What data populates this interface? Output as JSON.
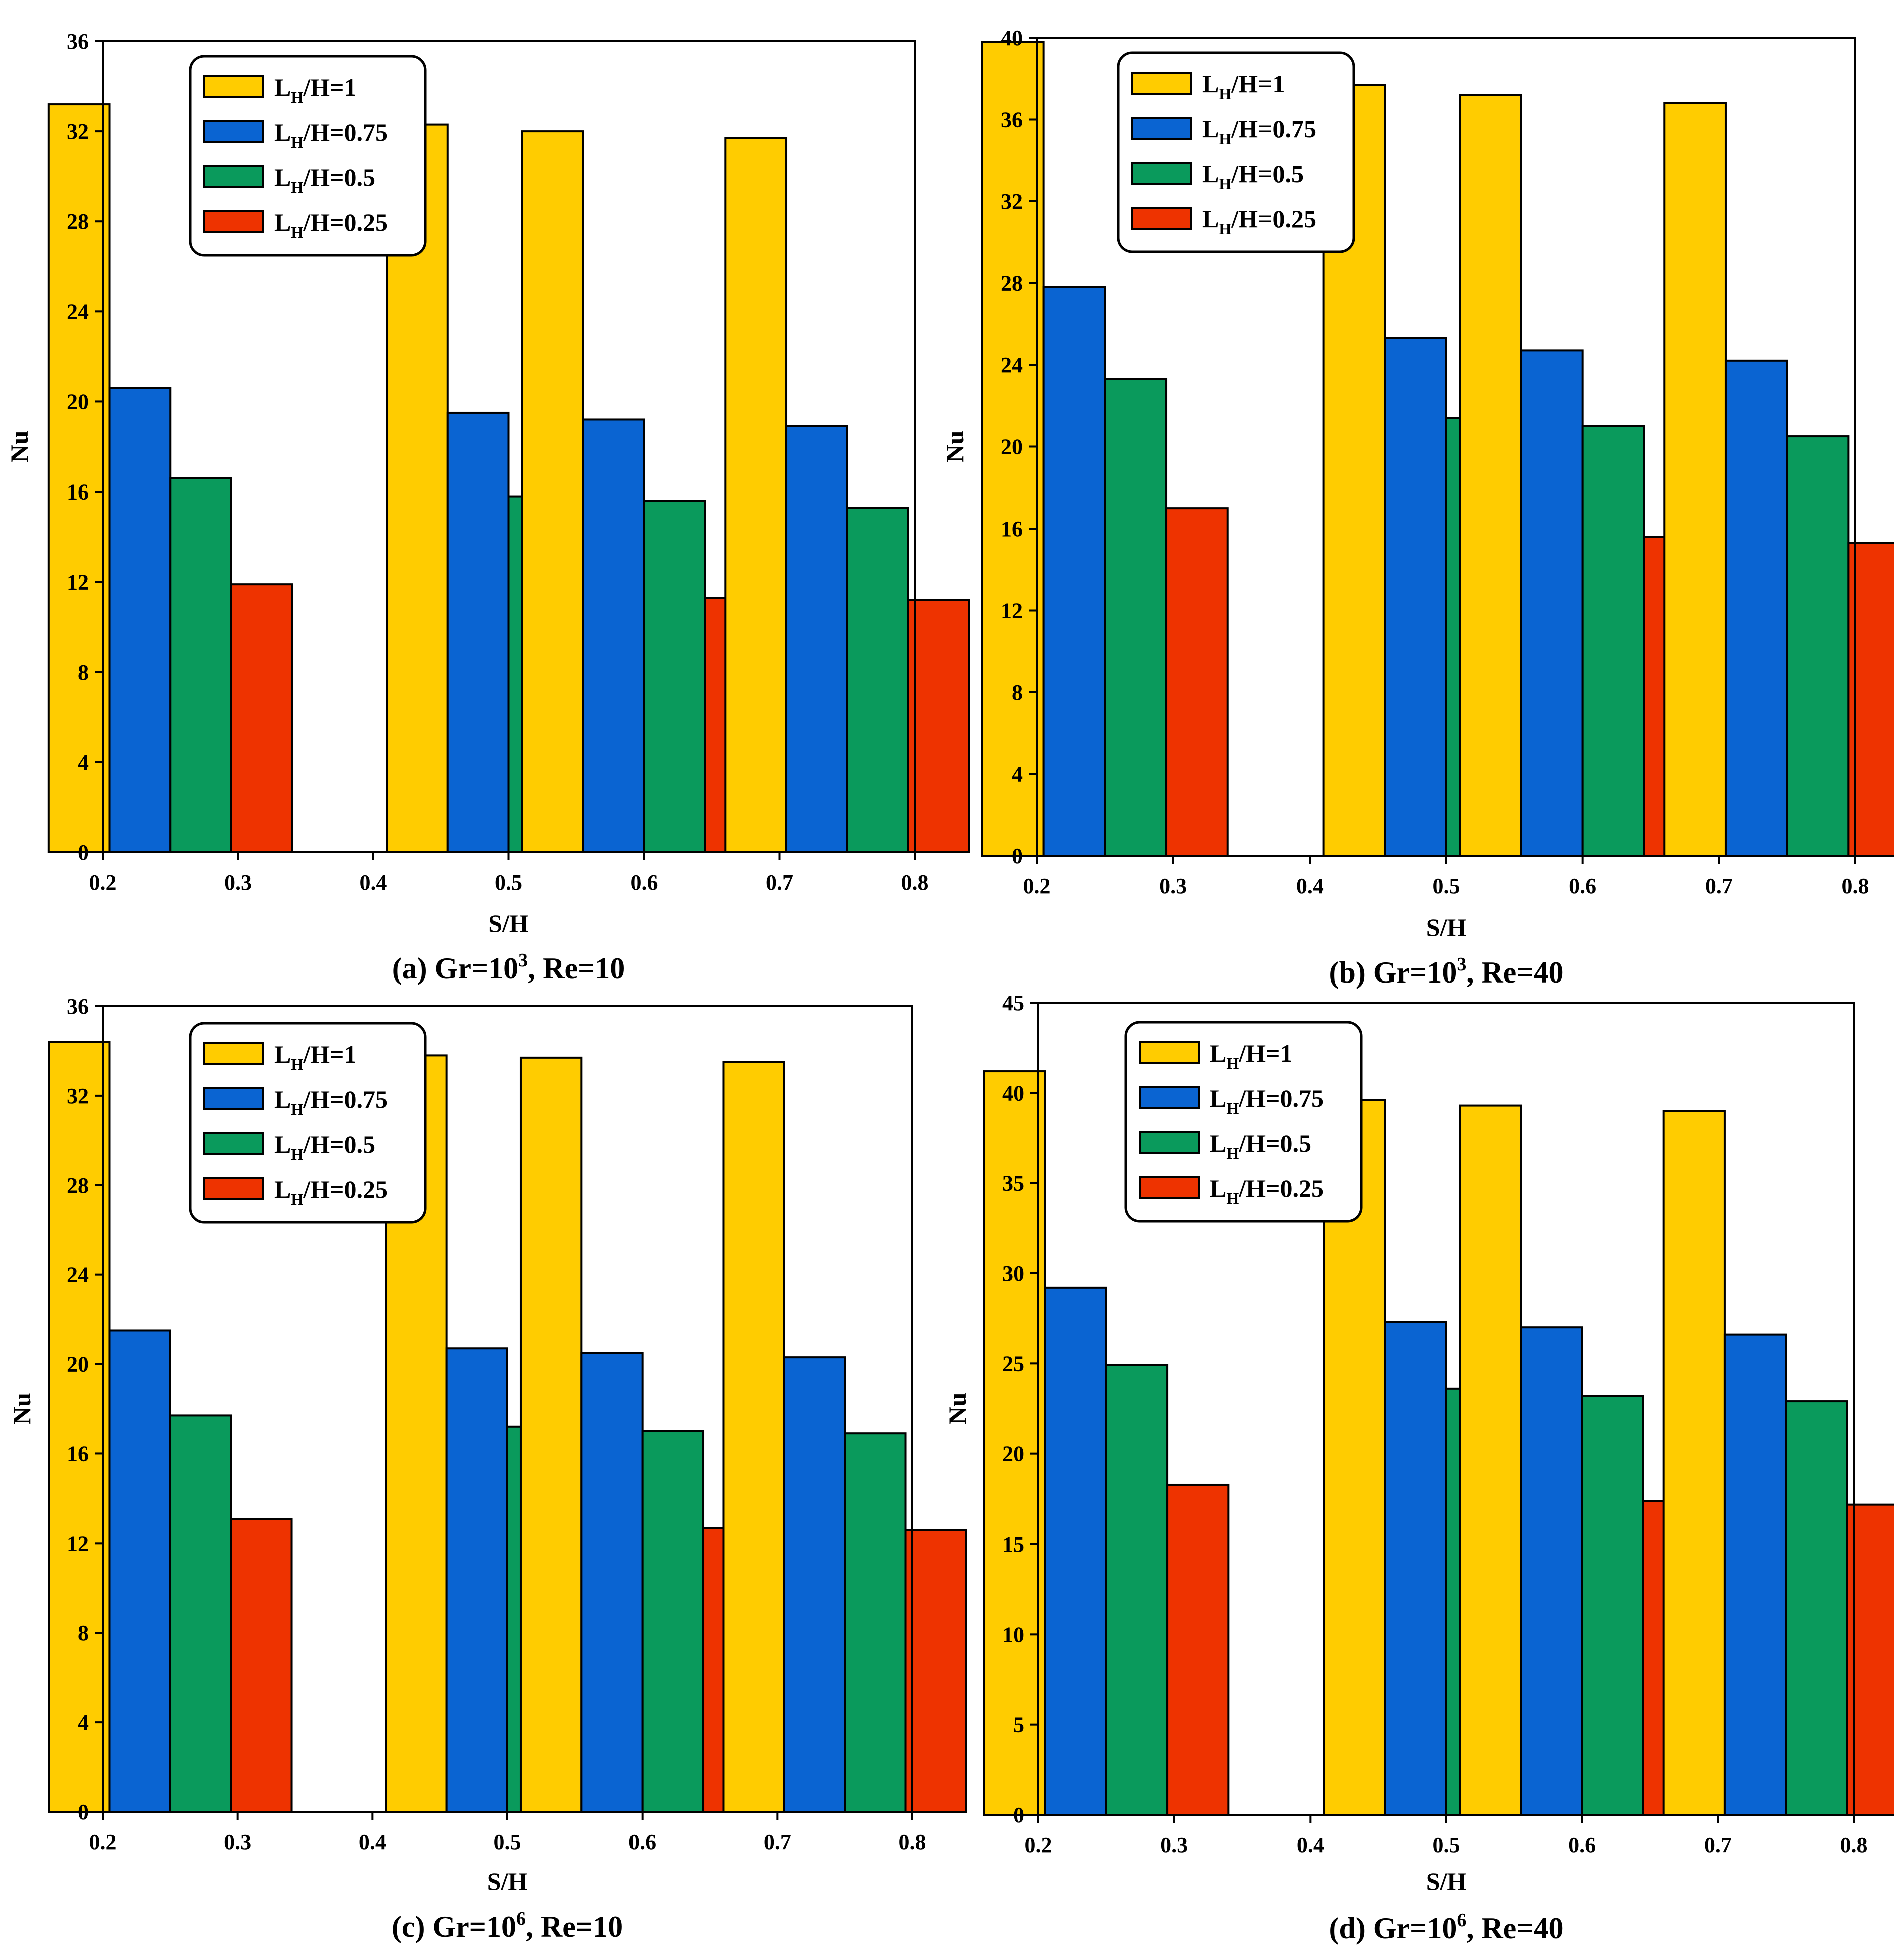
{
  "legend_labels": [
    {
      "main": "L",
      "sub": "H",
      "rest": "/H=1"
    },
    {
      "main": "L",
      "sub": "H",
      "rest": "/H=0.75"
    },
    {
      "main": "L",
      "sub": "H",
      "rest": "/H=0.5"
    },
    {
      "main": "L",
      "sub": "H",
      "rest": "/H=0.25"
    }
  ],
  "series_colors": [
    "#FFCC00",
    "#0A64D2",
    "#0A9A5C",
    "#EE3300"
  ],
  "chart_data": [
    {
      "type": "bar",
      "caption": {
        "pre": "(a) Gr=10",
        "sup": "3",
        "post": ", Re=10"
      },
      "xlabel": "S/H",
      "ylabel": "Nu",
      "xlim": [
        0.2,
        0.8
      ],
      "xticks": [
        "0.2",
        "0.3",
        "0.4",
        "0.5",
        "0.6",
        "0.7",
        "0.8"
      ],
      "ylim": [
        0,
        36
      ],
      "yticks": [
        "0",
        "4",
        "8",
        "12",
        "16",
        "20",
        "24",
        "28",
        "32",
        "36"
      ],
      "categories": [
        0.25,
        0.5,
        0.6,
        0.75
      ],
      "series": [
        {
          "name": "LH/H=1",
          "values": [
            33.2,
            32.3,
            32.0,
            31.7
          ]
        },
        {
          "name": "LH/H=0.75",
          "values": [
            20.6,
            19.5,
            19.2,
            18.9
          ]
        },
        {
          "name": "LH/H=0.5",
          "values": [
            16.6,
            15.8,
            15.6,
            15.3
          ]
        },
        {
          "name": "LH/H=0.25",
          "values": [
            11.9,
            11.4,
            11.3,
            11.2
          ]
        }
      ]
    },
    {
      "type": "bar",
      "caption": {
        "pre": "(b) Gr=10",
        "sup": "3",
        "post": ", Re=40"
      },
      "xlabel": "S/H",
      "ylabel": "Nu",
      "xlim": [
        0.2,
        0.8
      ],
      "xticks": [
        "0.2",
        "0.3",
        "0.4",
        "0.5",
        "0.6",
        "0.7",
        "0.8"
      ],
      "ylim": [
        0,
        40
      ],
      "yticks": [
        "0",
        "4",
        "8",
        "12",
        "16",
        "20",
        "24",
        "28",
        "32",
        "36",
        "40"
      ],
      "categories": [
        0.25,
        0.5,
        0.6,
        0.75
      ],
      "series": [
        {
          "name": "LH/H=1",
          "values": [
            39.8,
            37.7,
            37.2,
            36.8
          ]
        },
        {
          "name": "LH/H=0.75",
          "values": [
            27.8,
            25.3,
            24.7,
            24.2
          ]
        },
        {
          "name": "LH/H=0.5",
          "values": [
            23.3,
            21.4,
            21.0,
            20.5
          ]
        },
        {
          "name": "LH/H=0.25",
          "values": [
            17.0,
            15.9,
            15.6,
            15.3
          ]
        }
      ]
    },
    {
      "type": "bar",
      "caption": {
        "pre": "(c) Gr=10",
        "sup": "6",
        "post": ", Re=10"
      },
      "xlabel": "S/H",
      "ylabel": "Nu",
      "xlim": [
        0.2,
        0.8
      ],
      "xticks": [
        "0.2",
        "0.3",
        "0.4",
        "0.5",
        "0.6",
        "0.7",
        "0.8"
      ],
      "ylim": [
        0,
        36
      ],
      "yticks": [
        "0",
        "4",
        "8",
        "12",
        "16",
        "20",
        "24",
        "28",
        "32",
        "36"
      ],
      "categories": [
        0.25,
        0.5,
        0.6,
        0.75
      ],
      "series": [
        {
          "name": "LH/H=1",
          "values": [
            34.4,
            33.8,
            33.7,
            33.5
          ]
        },
        {
          "name": "LH/H=0.75",
          "values": [
            21.5,
            20.7,
            20.5,
            20.3
          ]
        },
        {
          "name": "LH/H=0.5",
          "values": [
            17.7,
            17.2,
            17.0,
            16.9
          ]
        },
        {
          "name": "LH/H=0.25",
          "values": [
            13.1,
            12.8,
            12.7,
            12.6
          ]
        }
      ]
    },
    {
      "type": "bar",
      "caption": {
        "pre": "(d) Gr=10",
        "sup": "6",
        "post": ", Re=40"
      },
      "xlabel": "S/H",
      "ylabel": "Nu",
      "xlim": [
        0.2,
        0.8
      ],
      "xticks": [
        "0.2",
        "0.3",
        "0.4",
        "0.5",
        "0.6",
        "0.7",
        "0.8"
      ],
      "ylim": [
        0,
        45
      ],
      "yticks": [
        "0",
        "5",
        "10",
        "15",
        "20",
        "25",
        "30",
        "35",
        "40",
        "45"
      ],
      "categories": [
        0.25,
        0.5,
        0.6,
        0.75
      ],
      "series": [
        {
          "name": "LH/H=1",
          "values": [
            41.2,
            39.6,
            39.3,
            39.0
          ]
        },
        {
          "name": "LH/H=0.75",
          "values": [
            29.2,
            27.3,
            27.0,
            26.6
          ]
        },
        {
          "name": "LH/H=0.5",
          "values": [
            24.9,
            23.6,
            23.2,
            22.9
          ]
        },
        {
          "name": "LH/H=0.25",
          "values": [
            18.3,
            17.6,
            17.4,
            17.2
          ]
        }
      ]
    }
  ]
}
